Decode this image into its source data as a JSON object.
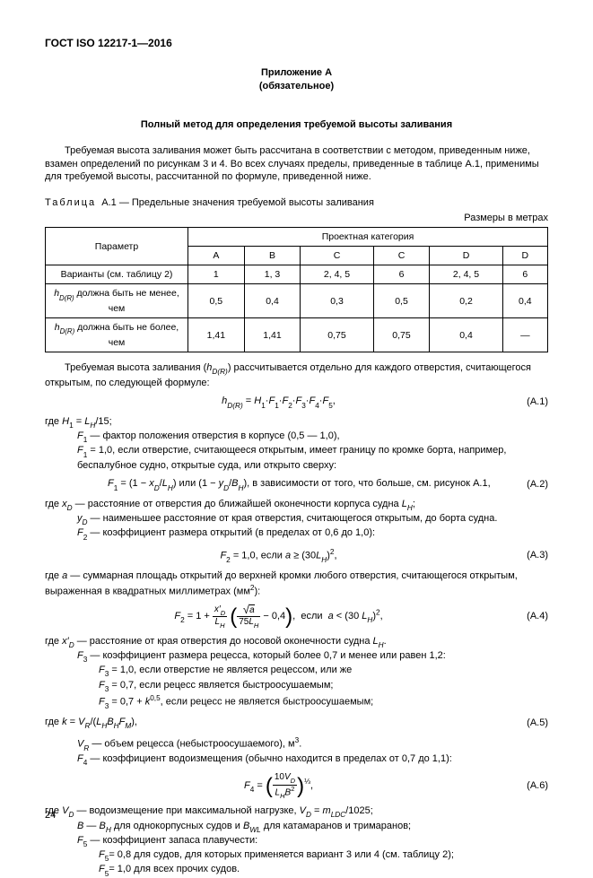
{
  "doc_id": "ГОСТ ISO 12217-1—2016",
  "appendix": {
    "title": "Приложение А",
    "sub": "(обязательное)"
  },
  "section_title": "Полный метод для определения требуемой высоты заливания",
  "intro": "Требуемая высота заливания может быть рассчитана в соответствии с методом, приведенным ниже, взамен определений по рисункам 3 и 4. Во всех случаях пределы, приведенные в таблице А.1, применимы для требуемой высоты, рассчитанной по формуле, приведенной ниже.",
  "table": {
    "caption_prefix": "Т а б л и ц а",
    "caption_rest": "А.1 — Предельные значения требуемой высоты заливания",
    "units": "Размеры в метрах",
    "col_param": "Параметр",
    "col_group": "Проектная категория",
    "cols": [
      "A",
      "B",
      "C",
      "C",
      "D",
      "D"
    ],
    "rows": [
      {
        "label": "Варианты (см. таблицу 2)",
        "v": [
          "1",
          "1, 3",
          "2, 4, 5",
          "6",
          "2, 4, 5",
          "6"
        ]
      },
      {
        "label_html": "<span class='ital'>h</span><span class='sub ital'>D(R)</span> должна быть не менее, чем",
        "v": [
          "0,5",
          "0,4",
          "0,3",
          "0,5",
          "0,2",
          "0,4"
        ]
      },
      {
        "label_html": "<span class='ital'>h</span><span class='sub ital'>D(R)</span> должна быть не более, чем",
        "v": [
          "1,41",
          "1,41",
          "0,75",
          "0,75",
          "0,4",
          "—"
        ]
      }
    ]
  },
  "body": {
    "p1_a": "Требуемая высота заливания (",
    "p1_b": ") рассчитывается отдельно для каждого отверстия, считающегося открытым, по следующей формуле:",
    "where_h1": "где ",
    "h1_def": " = L",
    "h1_def2": "/15;",
    "f1_def": " — фактор положения отверстия в корпусе (0,5 — 1,0),",
    "f1_val": " = 1,0, если отверстие, считающееся открытым, имеет границу по кромке борта, например, беспалубное судно, открытые суда, или открыто сверху:",
    "f1_formula": "в зависимости от того, что больше, см. рисунок А.1,",
    "xd_def": " — расстояние от отверстия до ближайшей оконечности корпуса судна ",
    "yd_def": " — наименьшее расстояние от края отверстия, считающегося открытым, до борта судна.",
    "f2_def": " — коэффициент размера открытий (в пределах от 0,6 до 1,0):",
    "a_def": " — суммарная площадь открытий до верхней кромки любого отверстия, считающегося открытым, выраженная в квадратных миллиметрах (мм",
    "xd2_def": " — расстояние от края отверстия до носовой оконечности судна ",
    "f3_def": " — коэффициент размера рецесса, который более 0,7 и менее или равен 1,2:",
    "f3_a": " = 1,0, если отверстие не является рецессом, или же",
    "f3_b": " = 0,7, если рецесс является быстроосушаемым;",
    "f3_c": " = 0,7 + ",
    "f3_c2": ", если рецесс не является быстроосушаемым;",
    "k_def": "где ",
    "vr_def": " — объем рецесса (небыстроосушаемого), м",
    "f4_def": " — коэффициент водоизмещения (обычно находится в пределах от 0,7 до 1,1):",
    "vd_def": " — водоизмещение при максимальной нагрузке, ",
    "vd_def2": "/1025;",
    "b_def": " для однокорпусных судов и ",
    "b_def2": " для катамаранов и тримаранов;",
    "f5_def": " — коэффициент запаса плавучести:",
    "f5_a": "= 0,8 для судов, для которых применяется вариант 3 или 4 (см. таблицу 2);",
    "f5_b": "= 1,0 для всех прочих судов."
  },
  "formulas": {
    "a1_num": "(А.1)",
    "a2_num": "(А.2)",
    "a3_num": "(А.3)",
    "a4_num": "(А.4)",
    "a5_num": "(А.5)",
    "a6_num": "(А.6)"
  },
  "page_number": "24"
}
